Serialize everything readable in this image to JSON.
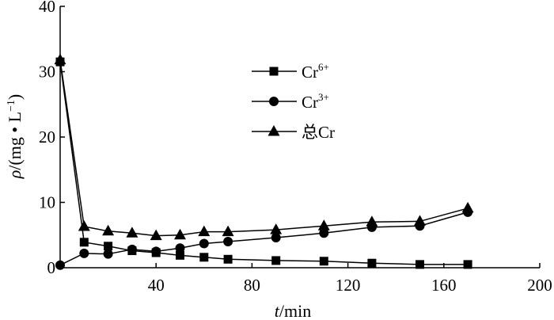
{
  "chart_data": {
    "type": "line",
    "xlabel": {
      "italic": "t",
      "rest": "/min"
    },
    "ylabel": {
      "italic": "ρ",
      "rest": "/(mg • L",
      "sup": "−1",
      "close": ")"
    },
    "xlim": [
      0,
      200
    ],
    "ylim": [
      0,
      40
    ],
    "xticks": [
      "40",
      "80",
      "120",
      "160",
      "200"
    ],
    "yticks": [
      "0",
      "10",
      "20",
      "30",
      "40"
    ],
    "grid": false,
    "legend_position": "center",
    "series": [
      {
        "name": "Cr6+",
        "label": {
          "base": "Cr",
          "sup": "6+"
        },
        "marker": "square",
        "x": [
          0,
          10,
          20,
          30,
          40,
          50,
          60,
          70,
          90,
          110,
          130,
          150,
          170
        ],
        "y": [
          31.5,
          3.9,
          3.3,
          2.6,
          2.3,
          1.9,
          1.6,
          1.3,
          1.1,
          1.0,
          0.7,
          0.5,
          0.5
        ]
      },
      {
        "name": "Cr3+",
        "label": {
          "base": "Cr",
          "sup": "3+"
        },
        "marker": "circle",
        "x": [
          0,
          10,
          20,
          30,
          40,
          50,
          60,
          70,
          90,
          110,
          130,
          150,
          170
        ],
        "y": [
          0.4,
          2.2,
          2.1,
          2.8,
          2.5,
          3.0,
          3.7,
          4.0,
          4.6,
          5.3,
          6.2,
          6.4,
          8.5
        ]
      },
      {
        "name": "总Cr",
        "label": {
          "base": "总Cr",
          "sup": ""
        },
        "marker": "triangle",
        "x": [
          0,
          10,
          20,
          30,
          40,
          50,
          60,
          70,
          90,
          110,
          130,
          150,
          170
        ],
        "y": [
          31.8,
          6.3,
          5.6,
          5.3,
          4.9,
          5.0,
          5.5,
          5.5,
          5.8,
          6.4,
          7.0,
          7.1,
          9.1
        ]
      }
    ]
  }
}
